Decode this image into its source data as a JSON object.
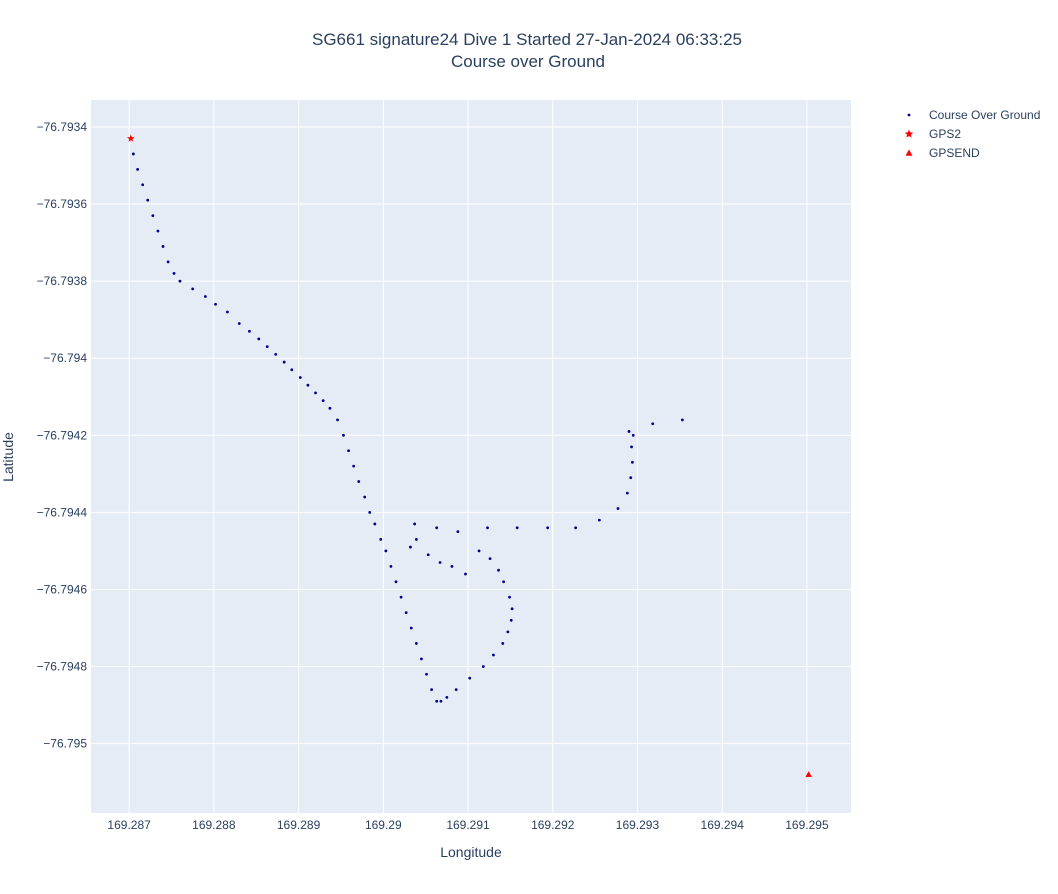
{
  "chart_data": {
    "type": "scatter",
    "title": "SG661 signature24 Dive 1 Started 27-Jan-2024 06:33:25",
    "subtitle": "Course over Ground",
    "xlabel": "Longitude",
    "ylabel": "Latitude",
    "xlim": [
      169.28655,
      169.29552
    ],
    "ylim": [
      -76.79518,
      -76.79333
    ],
    "x_ticks": [
      169.287,
      169.288,
      169.289,
      169.29,
      169.291,
      169.292,
      169.293,
      169.294,
      169.295
    ],
    "x_tick_labels": [
      "169.287",
      "169.288",
      "169.289",
      "169.29",
      "169.291",
      "169.292",
      "169.293",
      "169.294",
      "169.295"
    ],
    "y_ticks": [
      -76.7934,
      -76.7936,
      -76.7938,
      -76.794,
      -76.7942,
      -76.7944,
      -76.7946,
      -76.7948,
      -76.795
    ],
    "y_tick_labels": [
      "−76.7934",
      "−76.7936",
      "−76.7938",
      "−76.794",
      "−76.7942",
      "−76.7944",
      "−76.7946",
      "−76.7948",
      "−76.795"
    ],
    "grid": true,
    "legend_position": "top-right",
    "background_color": "#e5ecf6",
    "series": [
      {
        "name": "Course Over Ground",
        "marker": "circle",
        "color": "#00008b",
        "x": [
          169.28705,
          169.2871,
          169.28716,
          169.28722,
          169.28728,
          169.28734,
          169.2874,
          169.28746,
          169.28753,
          169.2876,
          169.28775,
          169.2879,
          169.28802,
          169.28816,
          169.2883,
          169.28842,
          169.28853,
          169.28863,
          169.28873,
          169.28883,
          169.28892,
          169.28902,
          169.28911,
          169.2892,
          169.28929,
          169.28937,
          169.28946,
          169.28953,
          169.28959,
          169.28965,
          169.28971,
          169.28978,
          169.28984,
          169.2899,
          169.28997,
          169.29003,
          169.29009,
          169.29015,
          169.29021,
          169.29027,
          169.29033,
          169.29039,
          169.29045,
          169.29051,
          169.29057,
          169.29063,
          169.29068,
          169.29075,
          169.29086,
          169.29102,
          169.29118,
          169.2913,
          169.29141,
          169.29147,
          169.29151,
          169.29152,
          169.29149,
          169.29142,
          169.29136,
          169.29126,
          169.29113,
          169.29097,
          169.29081,
          169.29067,
          169.29053,
          169.29039,
          169.29032,
          169.29037,
          169.29063,
          169.29088,
          169.29123,
          169.29158,
          169.29194,
          169.29227,
          169.29255,
          169.29277,
          169.29288,
          169.29292,
          169.29294,
          169.29293,
          169.2929,
          169.29295,
          169.29318,
          169.29353
        ],
        "y": [
          -76.79347,
          -76.79351,
          -76.79355,
          -76.79359,
          -76.79363,
          -76.79367,
          -76.79371,
          -76.79375,
          -76.79378,
          -76.7938,
          -76.79382,
          -76.79384,
          -76.79386,
          -76.79388,
          -76.79391,
          -76.79393,
          -76.79395,
          -76.79397,
          -76.79399,
          -76.79401,
          -76.79403,
          -76.79405,
          -76.79407,
          -76.79409,
          -76.79411,
          -76.79413,
          -76.79416,
          -76.7942,
          -76.79424,
          -76.79428,
          -76.79432,
          -76.79436,
          -76.7944,
          -76.79443,
          -76.79447,
          -76.7945,
          -76.79454,
          -76.79458,
          -76.79462,
          -76.79466,
          -76.7947,
          -76.79474,
          -76.79478,
          -76.79482,
          -76.79486,
          -76.79489,
          -76.79489,
          -76.79488,
          -76.79486,
          -76.79483,
          -76.7948,
          -76.79477,
          -76.79474,
          -76.79471,
          -76.79468,
          -76.79465,
          -76.79462,
          -76.79458,
          -76.79455,
          -76.79452,
          -76.7945,
          -76.79456,
          -76.79454,
          -76.79453,
          -76.79451,
          -76.79447,
          -76.79449,
          -76.79443,
          -76.79444,
          -76.79445,
          -76.79444,
          -76.79444,
          -76.79444,
          -76.79444,
          -76.79442,
          -76.79439,
          -76.79435,
          -76.79431,
          -76.79427,
          -76.79423,
          -76.79419,
          -76.7942,
          -76.79417,
          -76.79416
        ]
      },
      {
        "name": "GPS2",
        "marker": "star",
        "color": "#ff0000",
        "x": [
          169.28702
        ],
        "y": [
          -76.79343
        ]
      },
      {
        "name": "GPSEND",
        "marker": "triangle-up",
        "color": "#ff0000",
        "x": [
          169.29502
        ],
        "y": [
          -76.79508
        ]
      }
    ]
  }
}
